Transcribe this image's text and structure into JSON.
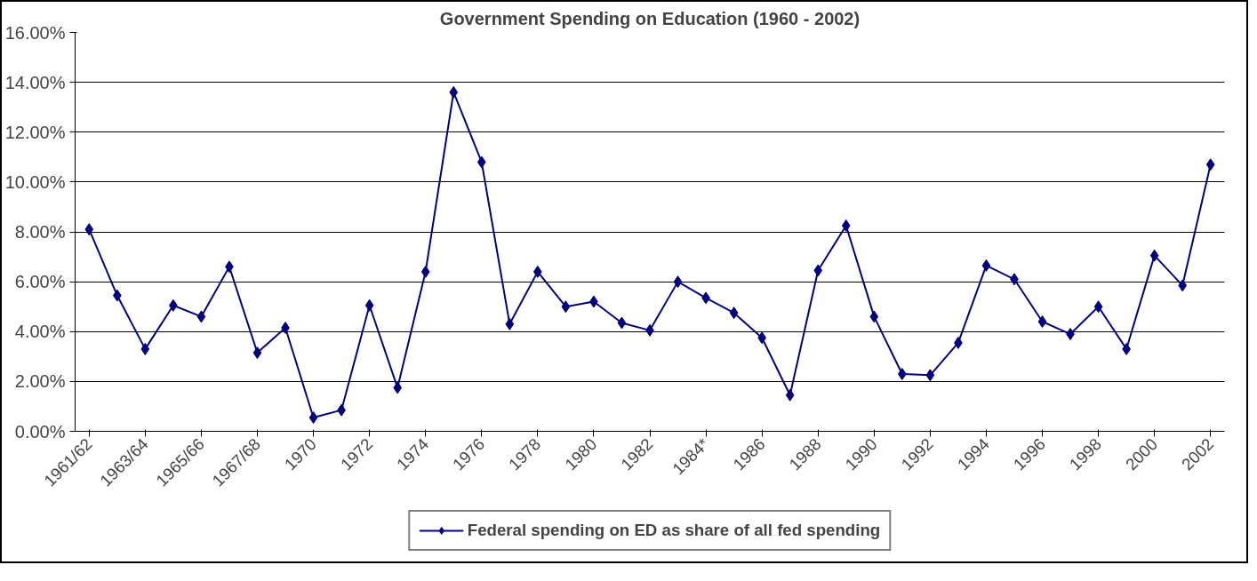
{
  "chart_data": {
    "type": "line",
    "title": "Government Spending on Education (1960 - 2002)",
    "categories": [
      "1961/62",
      null,
      "1963/64",
      null,
      "1965/66",
      null,
      "1967/68",
      null,
      "1970",
      null,
      "1972",
      null,
      "1974",
      null,
      "1976",
      null,
      "1978",
      null,
      "1980",
      null,
      "1982",
      null,
      "1984*",
      null,
      "1986",
      null,
      "1988",
      null,
      "1990",
      null,
      "1992",
      null,
      "1994",
      null,
      "1996",
      null,
      "1998",
      null,
      "2000",
      null,
      "2002"
    ],
    "series": [
      {
        "name": "Federal spending on ED as share of all fed spending",
        "color": "#000080",
        "values": [
          8.1,
          5.45,
          3.3,
          5.05,
          4.6,
          6.6,
          3.15,
          4.15,
          0.55,
          0.85,
          5.05,
          1.75,
          6.4,
          13.6,
          10.8,
          4.3,
          6.4,
          5.0,
          5.2,
          4.35,
          4.05,
          6.0,
          5.35,
          4.75,
          3.75,
          1.45,
          6.45,
          8.25,
          4.6,
          2.3,
          2.25,
          3.55,
          6.65,
          6.1,
          4.4,
          3.9,
          5.0,
          3.3,
          7.05,
          5.85,
          10.7
        ]
      }
    ],
    "ylim": [
      0,
      16
    ],
    "yticks": [
      {
        "value": 0,
        "label": "0.00%"
      },
      {
        "value": 2,
        "label": "2.00%"
      },
      {
        "value": 4,
        "label": "4.00%"
      },
      {
        "value": 6,
        "label": "6.00%"
      },
      {
        "value": 8,
        "label": "8.00%"
      },
      {
        "value": 10,
        "label": "10.00%"
      },
      {
        "value": 12,
        "label": "12.00%"
      },
      {
        "value": 14,
        "label": "14.00%"
      },
      {
        "value": 16,
        "label": "16.00%"
      }
    ],
    "grid": "y",
    "legend": "bottom",
    "marker": "diamond",
    "line_style": "solid"
  }
}
